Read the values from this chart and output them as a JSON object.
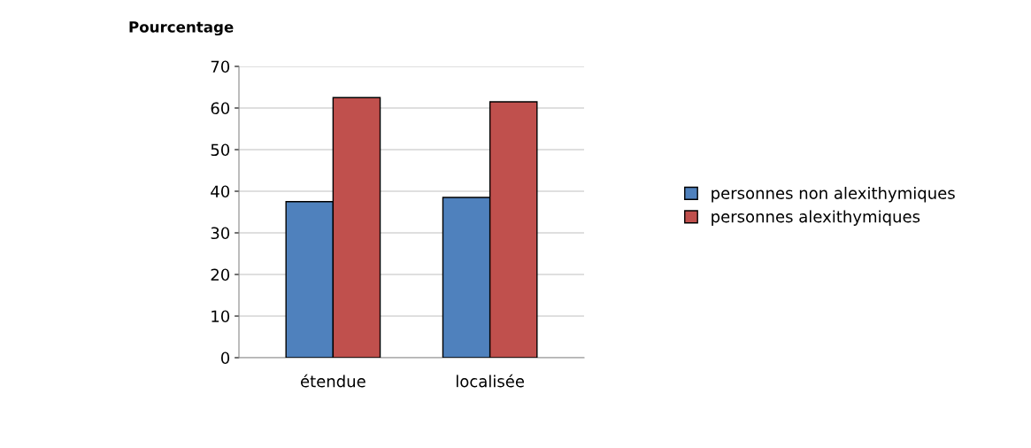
{
  "chart_data": {
    "type": "bar",
    "ylabel": "Pourcentage",
    "categories": [
      "étendue",
      "localisée"
    ],
    "series": [
      {
        "name": "personnes non alexithymiques",
        "color": "#4f81bd",
        "values": [
          37.5,
          38.5
        ]
      },
      {
        "name": "personnes alexithymiques",
        "color": "#c0504d",
        "values": [
          62.5,
          61.5
        ]
      }
    ],
    "ylim": [
      0,
      70
    ],
    "yticks": [
      0,
      10,
      20,
      30,
      40,
      50,
      60,
      70
    ],
    "grid": "y",
    "legend": "right"
  }
}
